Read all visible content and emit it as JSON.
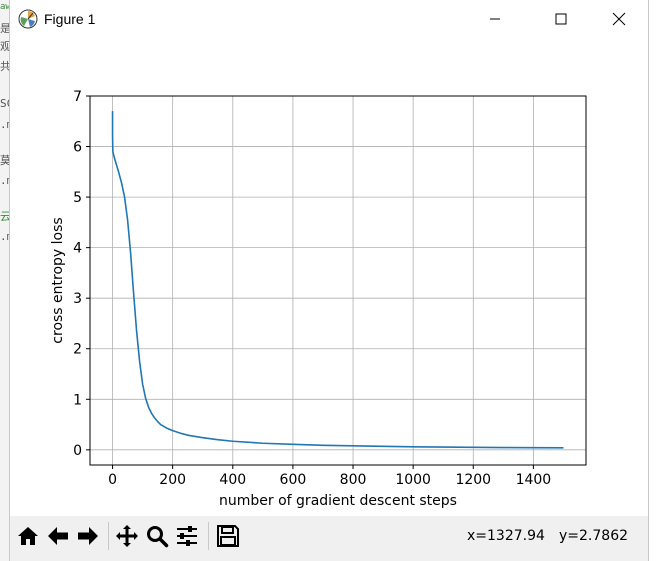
{
  "window": {
    "title": "Figure 1"
  },
  "background_fragments": [
    "aw",
    "是",
    "观",
    "共",
    "SC",
    ".m",
    "莫",
    ".m",
    "云",
    ".m"
  ],
  "toolbar": {
    "buttons": [
      {
        "name": "home-icon"
      },
      {
        "name": "back-arrow-icon"
      },
      {
        "name": "forward-arrow-icon"
      },
      {
        "name": "pan-icon"
      },
      {
        "name": "zoom-icon"
      },
      {
        "name": "configure-subplots-icon"
      },
      {
        "name": "save-icon"
      }
    ],
    "coord_x": "x=1327.94",
    "coord_y": "y=2.7862"
  },
  "chart_data": {
    "type": "line",
    "title": "",
    "xlabel": "number of gradient descent steps",
    "ylabel": "cross entropy loss",
    "xlim": [
      -75,
      1575
    ],
    "ylim": [
      -0.3,
      7
    ],
    "xticks": [
      0,
      200,
      400,
      600,
      800,
      1000,
      1200,
      1400
    ],
    "yticks": [
      0,
      1,
      2,
      3,
      4,
      5,
      6,
      7
    ],
    "grid": true,
    "line_color": "#1f77b4",
    "series": [
      {
        "x": [
          0,
          0,
          1,
          5,
          10,
          20,
          30,
          40,
          50,
          60,
          70,
          80,
          90,
          100,
          110,
          120,
          130,
          140,
          150,
          160,
          180,
          200,
          225,
          250,
          300,
          350,
          400,
          500,
          600,
          700,
          800,
          900,
          1000,
          1100,
          1200,
          1300,
          1400,
          1500
        ],
        "y": [
          6.7,
          6.2,
          5.9,
          5.8,
          5.7,
          5.5,
          5.28,
          5.0,
          4.55,
          3.9,
          3.1,
          2.35,
          1.75,
          1.3,
          1.02,
          0.84,
          0.72,
          0.63,
          0.56,
          0.5,
          0.43,
          0.38,
          0.33,
          0.29,
          0.24,
          0.2,
          0.17,
          0.13,
          0.11,
          0.09,
          0.08,
          0.07,
          0.06,
          0.055,
          0.05,
          0.045,
          0.042,
          0.04
        ]
      }
    ]
  }
}
